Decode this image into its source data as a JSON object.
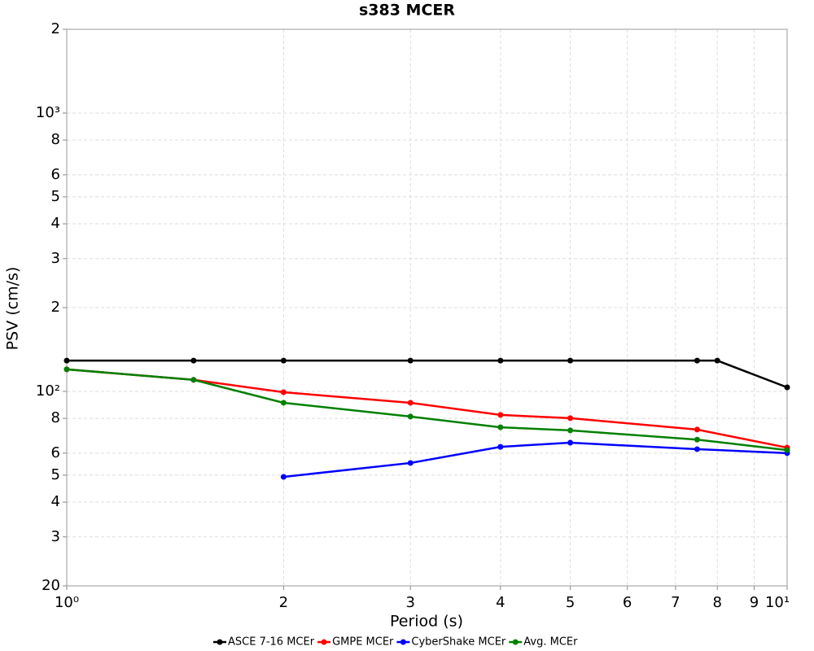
{
  "chart_data": {
    "type": "line",
    "title": "s383 MCER",
    "x_label": "Period (s)",
    "y_label": "PSV (cm/s)",
    "log_x": true,
    "log_y": true,
    "grid": true,
    "legend": "bottom",
    "xlim": [
      1,
      10
    ],
    "ylim": [
      20,
      2000
    ],
    "xticks": [
      {
        "value": 1,
        "label": "10⁰"
      },
      2,
      3,
      4,
      5,
      6,
      7,
      8,
      9,
      {
        "value": 10,
        "label": "10¹"
      }
    ],
    "yticks": [
      20,
      {
        "value": 30,
        "label": "3"
      },
      {
        "value": 40,
        "label": "4"
      },
      {
        "value": 50,
        "label": "5"
      },
      {
        "value": 60,
        "label": "6"
      },
      {
        "value": 80,
        "label": "8"
      },
      {
        "value": 100,
        "label": "10²"
      },
      {
        "value": 200,
        "label": "2"
      },
      {
        "value": 300,
        "label": "3"
      },
      {
        "value": 400,
        "label": "4"
      },
      {
        "value": 500,
        "label": "5"
      },
      {
        "value": 600,
        "label": "6"
      },
      {
        "value": 800,
        "label": "8"
      },
      {
        "value": 1000,
        "label": "10³"
      },
      {
        "value": 2000,
        "label": "2"
      }
    ],
    "series": [
      {
        "name": "ASCE 7-16 MCEr",
        "color": "#000000",
        "x": [
          1,
          1.5,
          2,
          3,
          4,
          5,
          7.5,
          8,
          10
        ],
        "values": [
          129,
          129,
          129,
          129,
          129,
          129,
          129,
          129,
          103.4
        ]
      },
      {
        "name": "GMPE MCEr",
        "color": "#ff0000",
        "x": [
          1,
          1.5,
          2,
          3,
          4,
          5,
          7.5,
          10
        ],
        "values": [
          120,
          110,
          99.3,
          91,
          82.3,
          80.1,
          72.9,
          62.8
        ]
      },
      {
        "name": "CyberShake MCEr",
        "color": "#0000ff",
        "x": [
          2,
          3,
          4,
          5,
          7.5,
          10
        ],
        "values": [
          49.3,
          55.3,
          63.2,
          65.4,
          62,
          60
        ]
      },
      {
        "name": "Avg. MCEr",
        "color": "#008000",
        "x": [
          1,
          1.5,
          2,
          3,
          4,
          5,
          7.5,
          10
        ],
        "values": [
          120,
          110,
          91,
          81.2,
          74.3,
          72.4,
          67.1,
          61.5
        ]
      }
    ]
  }
}
